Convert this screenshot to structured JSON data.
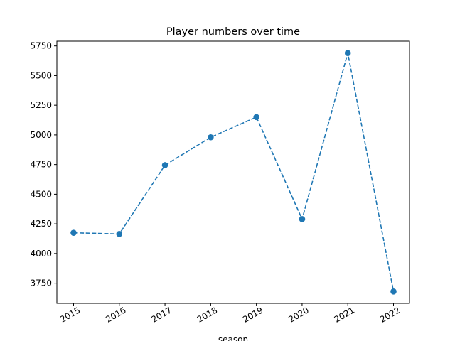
{
  "chart_data": {
    "type": "line",
    "title": "Player numbers over time",
    "xlabel": "season",
    "ylabel": "",
    "categories": [
      "2015",
      "2016",
      "2017",
      "2018",
      "2019",
      "2020",
      "2021",
      "2022"
    ],
    "series": [
      {
        "values": [
          4175,
          4165,
          4745,
          4980,
          5150,
          4290,
          5690,
          3680
        ],
        "color": "#1f77b4",
        "line_style": "dashed",
        "marker": "circle"
      }
    ],
    "yticks": [
      3750,
      4000,
      4250,
      4500,
      4750,
      5000,
      5250,
      5500,
      5750
    ],
    "ylim": [
      3580,
      5790
    ],
    "grid": false,
    "legend": "none",
    "xtick_rotation": 30
  }
}
